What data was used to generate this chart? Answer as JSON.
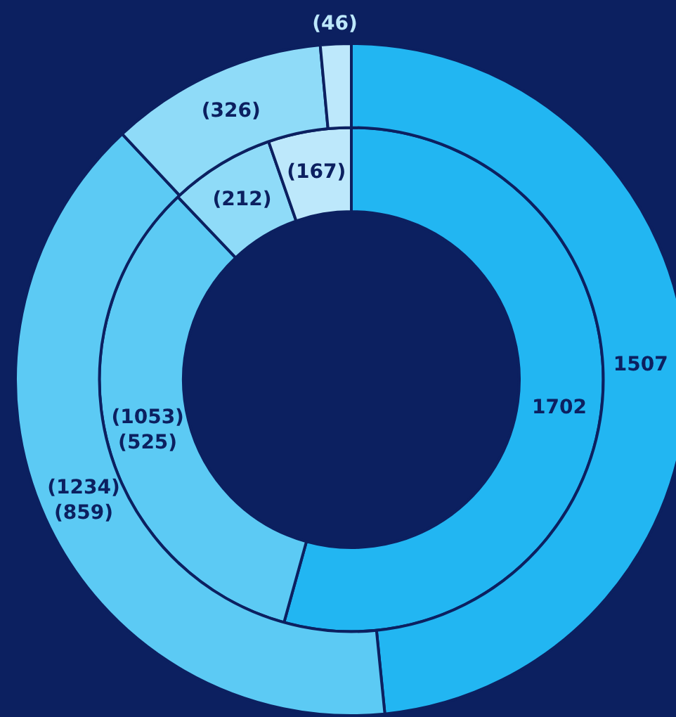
{
  "chart_data": {
    "type": "donut",
    "categories": [
      null,
      null,
      null,
      null
    ],
    "legend": false,
    "series": [
      {
        "values": [
          1507,
          1234,
          326,
          46
        ],
        "colors": [
          "#22b6f2",
          "#5ccaf4",
          "#8fdbf8",
          "#bde8fb"
        ],
        "value_labels": [
          "1507",
          "(1234)\n(859)",
          "(326)",
          "(46)"
        ]
      },
      {
        "values": [
          1702,
          1053,
          212,
          167
        ],
        "colors": [
          "#22b6f2",
          "#5ccaf4",
          "#8fdbf8",
          "#bde8fb"
        ],
        "value_labels": [
          "1702",
          "(1053)\n(525)",
          "(212)",
          "(167)"
        ]
      }
    ]
  }
}
